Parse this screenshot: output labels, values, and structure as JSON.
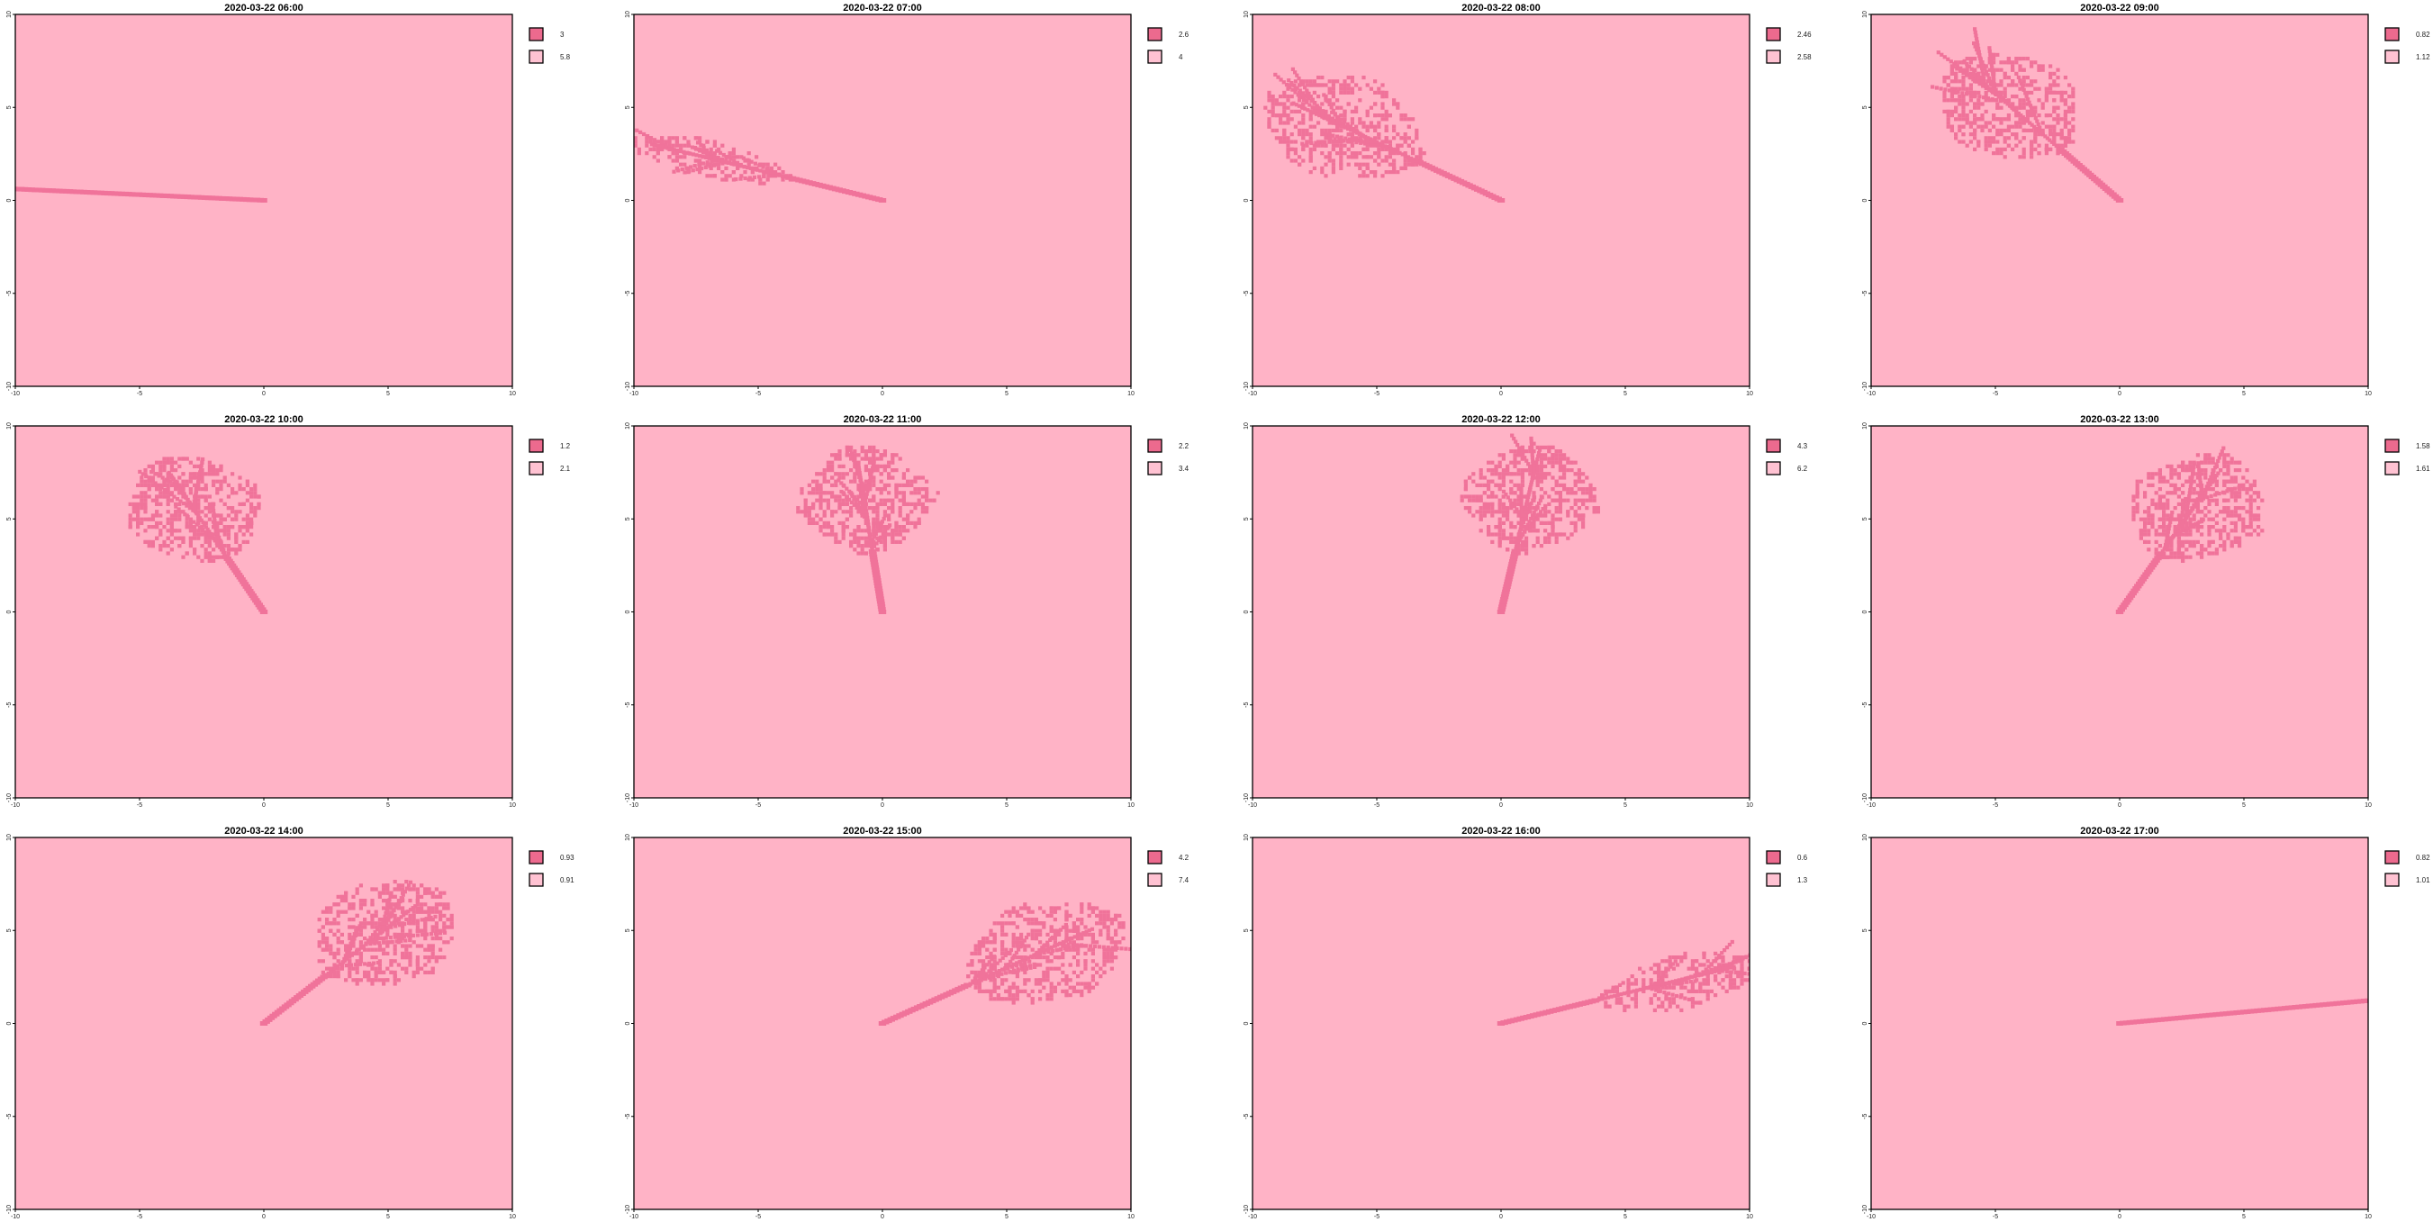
{
  "colors": {
    "background": "#ffb3c6",
    "tree": "#f0739a",
    "legend_dark": "#ec6a8e",
    "legend_light": "#ffc2d2"
  },
  "chart_data": [
    {
      "type": "heatmap",
      "title": "2020-03-22 06:00",
      "xlim": [
        -10,
        10
      ],
      "ylim": [
        -10,
        10
      ],
      "xticks": [
        "-10",
        "-5",
        "0",
        "5",
        "10"
      ],
      "yticks": [
        "-10",
        "-5",
        "0",
        "5",
        "10"
      ],
      "legend": [
        "3",
        "5.8"
      ],
      "direction_deg": 176.5,
      "length": 10.2,
      "crown": 0
    },
    {
      "type": "heatmap",
      "title": "2020-03-22 07:00",
      "xlim": [
        -10,
        10
      ],
      "ylim": [
        -10,
        10
      ],
      "xticks": [
        "-10",
        "-5",
        "0",
        "5",
        "10"
      ],
      "yticks": [
        "-10",
        "-5",
        "0",
        "5",
        "10"
      ],
      "legend": [
        "2.6",
        "4"
      ],
      "direction_deg": 162,
      "length": 10.4,
      "crown": 0.35
    },
    {
      "type": "heatmap",
      "title": "2020-03-22 08:00",
      "xlim": [
        -10,
        10
      ],
      "ylim": [
        -10,
        10
      ],
      "xticks": [
        "-10",
        "-5",
        "0",
        "5",
        "10"
      ],
      "yticks": [
        "-10",
        "-5",
        "0",
        "5",
        "10"
      ],
      "legend": [
        "2.46",
        "2.58"
      ],
      "direction_deg": 148,
      "length": 10.5,
      "crown": 1
    },
    {
      "type": "heatmap",
      "title": "2020-03-22 09:00",
      "xlim": [
        -10,
        10
      ],
      "ylim": [
        -10,
        10
      ],
      "xticks": [
        "-10",
        "-5",
        "0",
        "5",
        "10"
      ],
      "yticks": [
        "-10",
        "-5",
        "0",
        "5",
        "10"
      ],
      "legend": [
        "0.82",
        "1.12"
      ],
      "direction_deg": 131,
      "length": 9.5,
      "crown": 1
    },
    {
      "type": "heatmap",
      "title": "2020-03-22 10:00",
      "xlim": [
        -10,
        10
      ],
      "ylim": [
        -10,
        10
      ],
      "xticks": [
        "-10",
        "-5",
        "0",
        "5",
        "10"
      ],
      "yticks": [
        "-10",
        "-5",
        "0",
        "5",
        "10"
      ],
      "legend": [
        "1.2",
        "2.1"
      ],
      "direction_deg": 117,
      "length": 8.8,
      "crown": 1
    },
    {
      "type": "heatmap",
      "title": "2020-03-22 11:00",
      "xlim": [
        -10,
        10
      ],
      "ylim": [
        -10,
        10
      ],
      "xticks": [
        "-10",
        "-5",
        "0",
        "5",
        "10"
      ],
      "yticks": [
        "-10",
        "-5",
        "0",
        "5",
        "10"
      ],
      "legend": [
        "2.2",
        "3.4"
      ],
      "direction_deg": 97,
      "length": 8.6,
      "crown": 1
    },
    {
      "type": "heatmap",
      "title": "2020-03-22 12:00",
      "xlim": [
        -10,
        10
      ],
      "ylim": [
        -10,
        10
      ],
      "xticks": [
        "-10",
        "-5",
        "0",
        "5",
        "10"
      ],
      "yticks": [
        "-10",
        "-5",
        "0",
        "5",
        "10"
      ],
      "legend": [
        "4.3",
        "6.2"
      ],
      "direction_deg": 80,
      "length": 8.7,
      "crown": 1
    },
    {
      "type": "heatmap",
      "title": "2020-03-22 13:00",
      "xlim": [
        -10,
        10
      ],
      "ylim": [
        -10,
        10
      ],
      "xticks": [
        "-10",
        "-5",
        "0",
        "5",
        "10"
      ],
      "yticks": [
        "-10",
        "-5",
        "0",
        "5",
        "10"
      ],
      "legend": [
        "1.58",
        "1.61"
      ],
      "direction_deg": 62,
      "length": 9,
      "crown": 1
    },
    {
      "type": "heatmap",
      "title": "2020-03-22 14:00",
      "xlim": [
        -10,
        10
      ],
      "ylim": [
        -10,
        10
      ],
      "xticks": [
        "-10",
        "-5",
        "0",
        "5",
        "10"
      ],
      "yticks": [
        "-10",
        "-5",
        "0",
        "5",
        "10"
      ],
      "legend": [
        "0.93",
        "0.91"
      ],
      "direction_deg": 46,
      "length": 9.5,
      "crown": 1
    },
    {
      "type": "heatmap",
      "title": "2020-03-22 15:00",
      "xlim": [
        -10,
        10
      ],
      "ylim": [
        -10,
        10
      ],
      "xticks": [
        "-10",
        "-5",
        "0",
        "5",
        "10"
      ],
      "yticks": [
        "-10",
        "-5",
        "0",
        "5",
        "10"
      ],
      "legend": [
        "4.2",
        "7.4"
      ],
      "direction_deg": 31,
      "length": 10.5,
      "crown": 1
    },
    {
      "type": "heatmap",
      "title": "2020-03-22 16:00",
      "xlim": [
        -10,
        10
      ],
      "ylim": [
        -10,
        10
      ],
      "xticks": [
        "-10",
        "-5",
        "0",
        "5",
        "10"
      ],
      "yticks": [
        "-10",
        "-5",
        "0",
        "5",
        "10"
      ],
      "legend": [
        "0.6",
        "1.3"
      ],
      "direction_deg": 18,
      "length": 10.5,
      "crown": 0.5
    },
    {
      "type": "heatmap",
      "title": "2020-03-22 17:00",
      "xlim": [
        -10,
        10
      ],
      "ylim": [
        -10,
        10
      ],
      "xticks": [
        "-10",
        "-5",
        "0",
        "5",
        "10"
      ],
      "yticks": [
        "-10",
        "-5",
        "0",
        "5",
        "10"
      ],
      "legend": [
        "0.82",
        "1.01"
      ],
      "direction_deg": 7,
      "length": 10.2,
      "crown": 0
    }
  ]
}
